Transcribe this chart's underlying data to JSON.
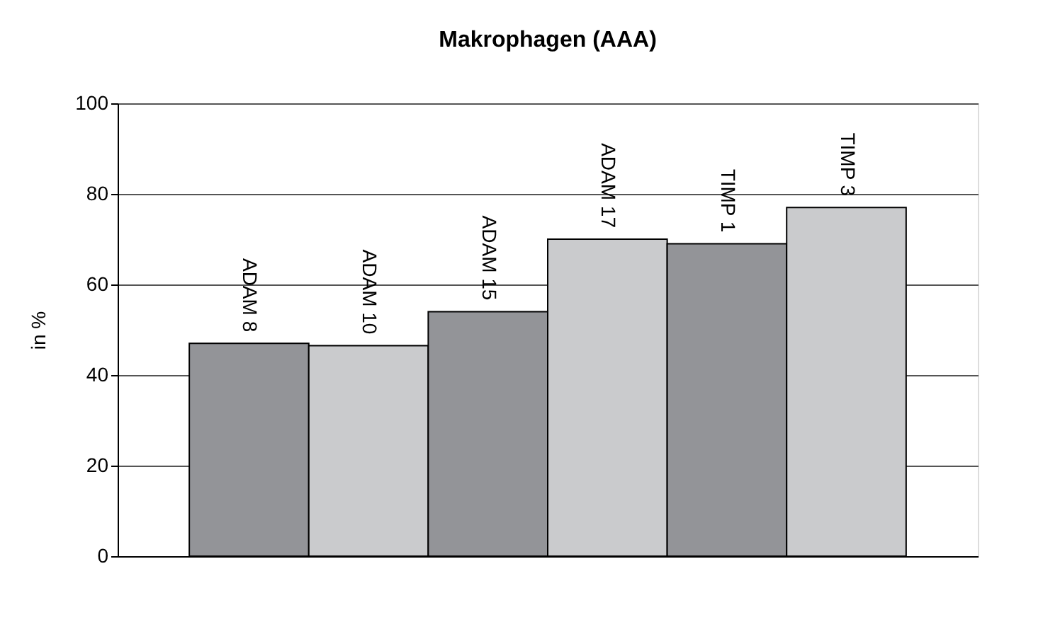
{
  "chart_data": {
    "type": "bar",
    "title": "Makrophagen (AAA)",
    "ylabel": "in %",
    "categories": [
      "ADAM 8",
      "ADAM 10",
      "ADAM 15",
      "ADAM 17",
      "TIMP 1",
      "TIMP 3"
    ],
    "values": [
      47,
      46.5,
      54,
      70,
      69,
      77
    ],
    "colors": [
      "#939498",
      "#cacbcd",
      "#939498",
      "#cacbcd",
      "#939498",
      "#cacbcd"
    ],
    "ylim": [
      0,
      100
    ],
    "yticks": [
      0,
      20,
      40,
      60,
      80,
      100
    ],
    "grid": "y",
    "tick_labels": "y"
  }
}
